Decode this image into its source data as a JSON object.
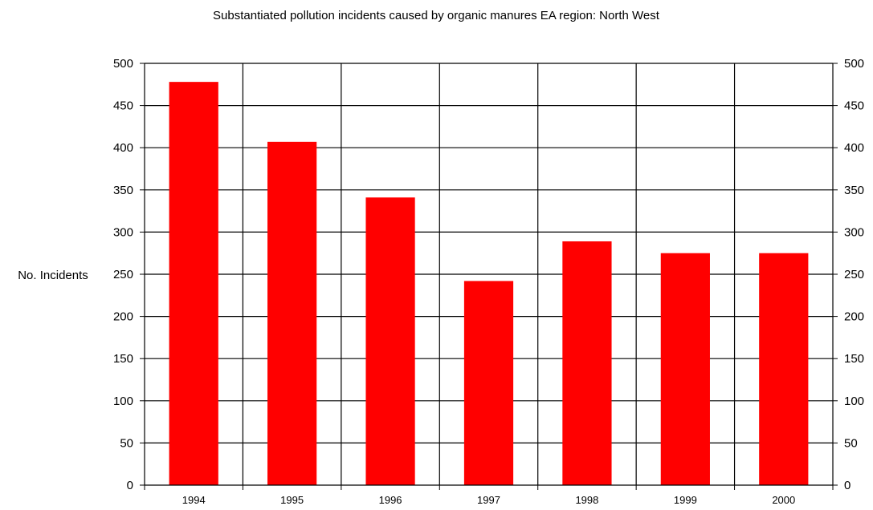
{
  "chart_data": {
    "type": "bar",
    "title": "Substantiated pollution incidents caused by organic manures EA region: North West",
    "xlabel": "",
    "ylabel": "No. Incidents",
    "categories": [
      "1994",
      "1995",
      "1996",
      "1997",
      "1998",
      "1999",
      "2000"
    ],
    "values": [
      478,
      407,
      341,
      242,
      289,
      275,
      275
    ],
    "ylim": [
      0,
      500
    ],
    "yticks": [
      "0",
      "50",
      "100",
      "150",
      "200",
      "250",
      "300",
      "350",
      "400",
      "450",
      "500"
    ],
    "secondary_y_axis": true,
    "grid": true,
    "legend": "none",
    "bar_color": "#ff0000"
  }
}
